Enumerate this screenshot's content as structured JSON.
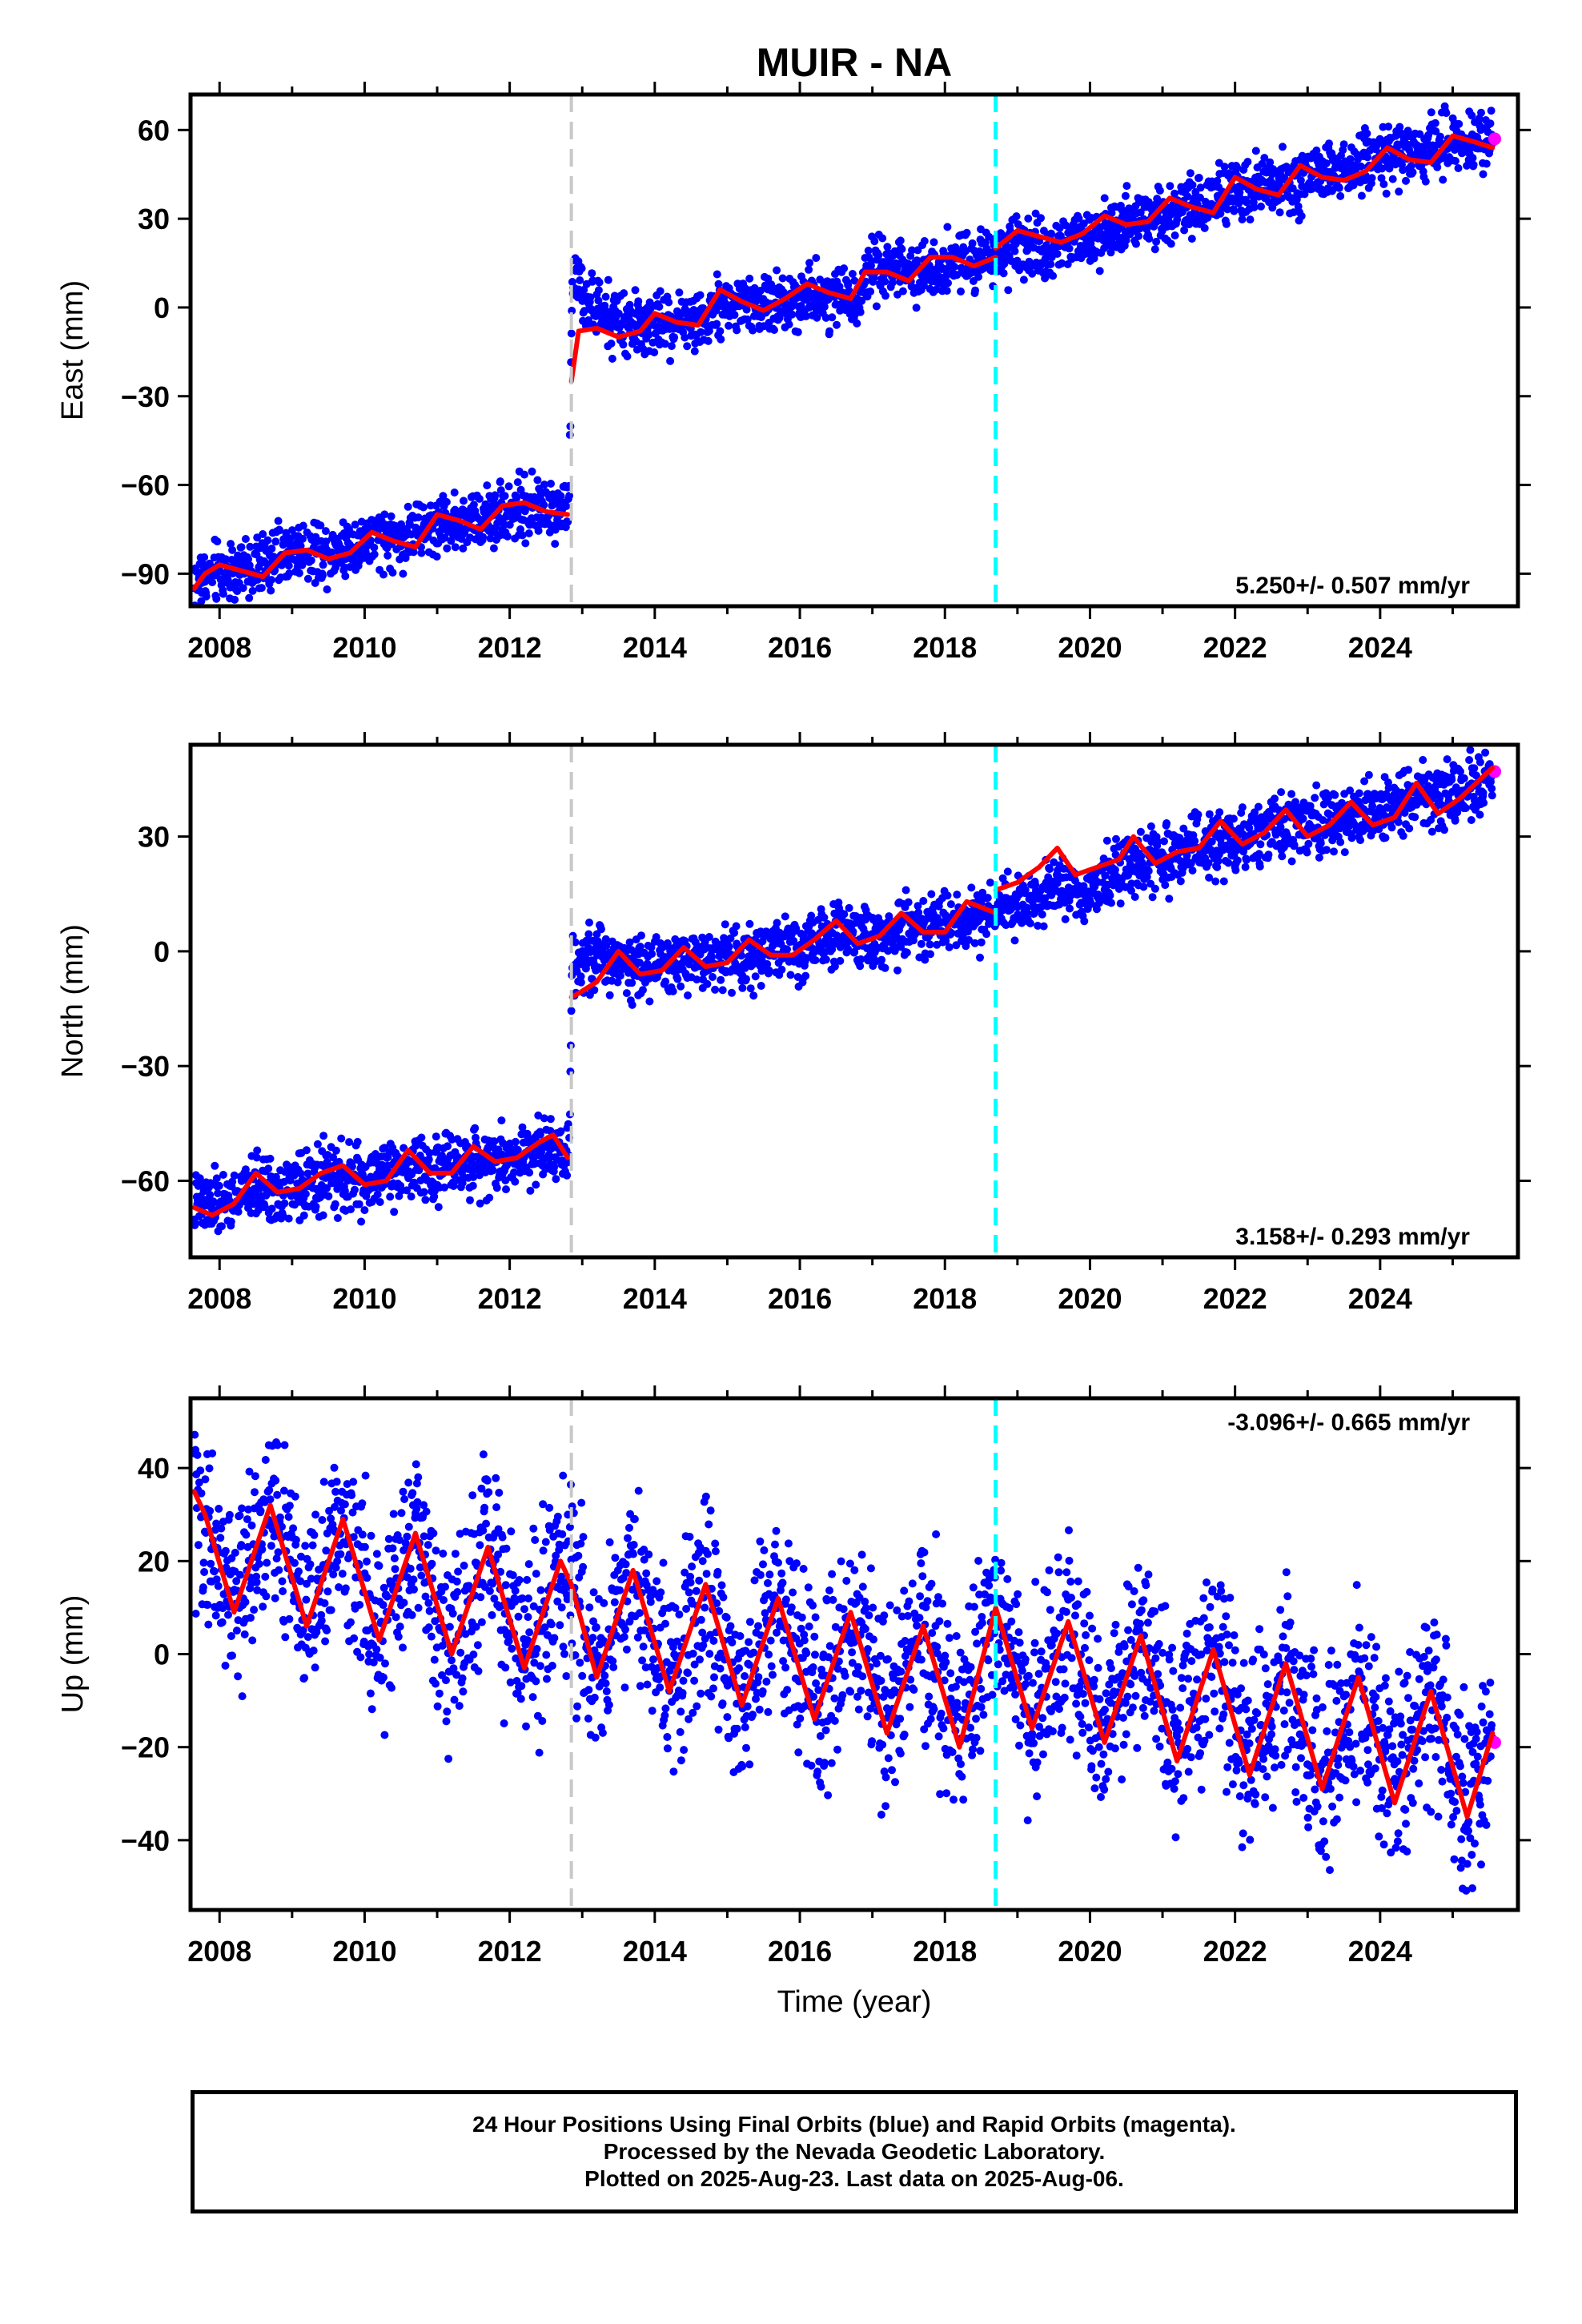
{
  "colors": {
    "final_orbits": "#0000ff",
    "rapid_orbits": "#ff00ff",
    "model": "#ff0000",
    "equipment_change": "#c8c8c8",
    "earthquake": "#00ffff",
    "frame": "#000000"
  },
  "caption": {
    "line1": "24 Hour Positions Using Final Orbits (blue) and Rapid Orbits (magenta).",
    "line2": "Processed by the Nevada Geodetic Laboratory.",
    "line3": "Plotted on 2025-Aug-23. Last data on 2025-Aug-06."
  },
  "chart_data": [
    {
      "type": "scatter",
      "title": "MUIR - NA",
      "ylabel": "East (mm)",
      "xlabel": "",
      "xlim": [
        2007.6,
        2025.9
      ],
      "ylim": [
        -101,
        72
      ],
      "yticks": [
        60,
        30,
        0,
        -30,
        -60,
        -90
      ],
      "xticks": [
        2008,
        2010,
        2012,
        2014,
        2016,
        2018,
        2020,
        2022,
        2024
      ],
      "rate_label": "5.250+/- 0.507 mm/yr",
      "rate_position": "bottom-right",
      "vertical_lines": [
        {
          "x": 2012.85,
          "kind": "equipment_change",
          "style": "dashed",
          "color": "#c8c8c8"
        },
        {
          "x": 2018.7,
          "kind": "earthquake",
          "style": "dashed",
          "color": "#00ffff"
        }
      ],
      "model": {
        "segments": [
          {
            "x": [
              2007.65,
              2007.8,
              2008.0,
              2008.3,
              2008.6,
              2008.9,
              2009.2,
              2009.5,
              2009.8,
              2010.1,
              2010.4,
              2010.7,
              2011.0,
              2011.3,
              2011.6,
              2011.9,
              2012.2,
              2012.5,
              2012.8
            ],
            "y": [
              -95,
              -90,
              -87,
              -89,
              -91,
              -83,
              -82,
              -85,
              -83,
              -76,
              -79,
              -81,
              -70,
              -72,
              -75,
              -67,
              -66,
              -69,
              -70
            ]
          },
          {
            "x": [
              2012.85,
              2012.95,
              2013.2,
              2013.5,
              2013.8,
              2014.0,
              2014.3,
              2014.6,
              2014.9,
              2015.2,
              2015.5,
              2015.8,
              2016.1,
              2016.4,
              2016.7,
              2016.9,
              2017.2,
              2017.5,
              2017.8,
              2018.1,
              2018.4,
              2018.7
            ],
            "y": [
              -25,
              -8,
              -7,
              -10,
              -8,
              -2,
              -5,
              -6,
              6,
              2,
              -1,
              3,
              8,
              5,
              3,
              12,
              12,
              9,
              17,
              17,
              14,
              17
            ]
          },
          {
            "x": [
              2018.7,
              2019.0,
              2019.3,
              2019.6,
              2019.9,
              2020.2,
              2020.5,
              2020.8,
              2021.1,
              2021.4,
              2021.7,
              2022.0,
              2022.3,
              2022.6,
              2022.9,
              2023.2,
              2023.5,
              2023.8,
              2024.1,
              2024.4,
              2024.7,
              2025.0,
              2025.3,
              2025.55
            ],
            "y": [
              20,
              26,
              24,
              22,
              25,
              31,
              28,
              29,
              37,
              34,
              32,
              44,
              40,
              38,
              48,
              44,
              43,
              46,
              54,
              50,
              49,
              58,
              56,
              54
            ]
          }
        ]
      },
      "envelope": {
        "x": [
          2007.65,
          2008.0,
          2008.5,
          2009.0,
          2009.5,
          2010.0,
          2010.5,
          2011.0,
          2011.5,
          2012.0,
          2012.5,
          2012.82,
          2012.86,
          2013.0,
          2013.5,
          2014.0,
          2014.5,
          2015.0,
          2015.5,
          2016.0,
          2016.5,
          2016.8,
          2017.0,
          2017.5,
          2018.0,
          2018.5,
          2019.0,
          2019.5,
          2020.0,
          2020.5,
          2021.0,
          2021.5,
          2022.0,
          2022.5,
          2023.0,
          2023.5,
          2024.0,
          2024.5,
          2025.0,
          2025.55
        ],
        "y": [
          -93,
          -89,
          -88,
          -82,
          -82,
          -79,
          -78,
          -73,
          -72,
          -68,
          -68,
          -67,
          12,
          2,
          -6,
          -6,
          -5,
          2,
          0,
          4,
          4,
          4,
          14,
          12,
          15,
          17,
          19,
          21,
          24,
          28,
          32,
          34,
          39,
          41,
          44,
          46,
          52,
          53,
          56,
          56
        ],
        "spread": 5
      },
      "rapid_points": [
        {
          "x": 2025.58,
          "y": 57
        }
      ]
    },
    {
      "type": "scatter",
      "ylabel": "North (mm)",
      "xlabel": "",
      "xlim": [
        2007.6,
        2025.9
      ],
      "ylim": [
        -80,
        54
      ],
      "yticks": [
        30,
        0,
        -30,
        -60
      ],
      "xticks": [
        2008,
        2010,
        2012,
        2014,
        2016,
        2018,
        2020,
        2022,
        2024
      ],
      "rate_label": "3.158+/- 0.293 mm/yr",
      "rate_position": "bottom-right",
      "vertical_lines": [
        {
          "x": 2012.85,
          "kind": "equipment_change",
          "style": "dashed",
          "color": "#c8c8c8"
        },
        {
          "x": 2018.7,
          "kind": "earthquake",
          "style": "dashed",
          "color": "#00ffff"
        }
      ],
      "model": {
        "segments": [
          {
            "x": [
              2007.65,
              2007.9,
              2008.2,
              2008.5,
              2008.8,
              2009.1,
              2009.4,
              2009.7,
              2010.0,
              2010.3,
              2010.6,
              2010.9,
              2011.2,
              2011.5,
              2011.8,
              2012.1,
              2012.4,
              2012.6,
              2012.8
            ],
            "y": [
              -67,
              -69,
              -66,
              -58,
              -63,
              -62,
              -58,
              -56,
              -61,
              -60,
              -52,
              -58,
              -58,
              -51,
              -55,
              -54,
              -50,
              -48,
              -54
            ]
          },
          {
            "x": [
              2012.85,
              2012.95,
              2013.2,
              2013.5,
              2013.8,
              2014.1,
              2014.4,
              2014.7,
              2015.0,
              2015.3,
              2015.6,
              2015.9,
              2016.2,
              2016.5,
              2016.8,
              2017.1,
              2017.4,
              2017.7,
              2018.0,
              2018.3,
              2018.7
            ],
            "y": [
              -12,
              -11,
              -8,
              0,
              -6,
              -5,
              1,
              -4,
              -3,
              3,
              -1,
              -1,
              3,
              8,
              2,
              4,
              10,
              5,
              5,
              13,
              10
            ]
          },
          {
            "x": [
              2018.7,
              2019.0,
              2019.3,
              2019.55,
              2019.8,
              2020.1,
              2020.4,
              2020.6,
              2020.9,
              2021.2,
              2021.5,
              2021.8,
              2022.1,
              2022.4,
              2022.7,
              2023.0,
              2023.3,
              2023.6,
              2023.9,
              2024.2,
              2024.5,
              2024.8,
              2025.1,
              2025.55
            ],
            "y": [
              16,
              18,
              22,
              27,
              20,
              22,
              24,
              30,
              23,
              26,
              27,
              34,
              28,
              31,
              37,
              30,
              33,
              39,
              33,
              35,
              44,
              36,
              40,
              48
            ]
          }
        ]
      },
      "envelope": {
        "x": [
          2007.65,
          2008.0,
          2008.5,
          2009.0,
          2009.5,
          2010.0,
          2010.5,
          2011.0,
          2011.5,
          2012.0,
          2012.5,
          2012.82,
          2012.86,
          2013.0,
          2013.5,
          2014.0,
          2014.5,
          2015.0,
          2015.5,
          2016.0,
          2016.5,
          2017.0,
          2017.5,
          2018.0,
          2018.5,
          2018.7,
          2019.0,
          2019.5,
          2020.0,
          2020.5,
          2021.0,
          2021.5,
          2022.0,
          2022.5,
          2023.0,
          2023.5,
          2024.0,
          2024.5,
          2025.0,
          2025.55
        ],
        "y": [
          -67,
          -66,
          -62,
          -62,
          -59,
          -60,
          -56,
          -57,
          -55,
          -54,
          -51,
          -52,
          -3,
          -2,
          -2,
          -4,
          -2,
          -2,
          0,
          0,
          4,
          3,
          6,
          6,
          10,
          11,
          12,
          15,
          16,
          22,
          24,
          27,
          28,
          32,
          33,
          34,
          37,
          41,
          41,
          45
        ],
        "spread": 4
      },
      "rapid_points": [
        {
          "x": 2025.58,
          "y": 47
        }
      ]
    },
    {
      "type": "scatter",
      "ylabel": "Up (mm)",
      "xlabel": "Time (year)",
      "xlim": [
        2007.6,
        2025.9
      ],
      "ylim": [
        -55,
        55
      ],
      "yticks": [
        40,
        20,
        0,
        -20,
        -40
      ],
      "xticks": [
        2008,
        2010,
        2012,
        2014,
        2016,
        2018,
        2020,
        2022,
        2024
      ],
      "rate_label": "-3.096+/- 0.665 mm/yr",
      "rate_position": "top-right",
      "vertical_lines": [
        {
          "x": 2012.85,
          "kind": "equipment_change",
          "style": "dashed",
          "color": "#c8c8c8"
        },
        {
          "x": 2018.7,
          "kind": "earthquake",
          "style": "dashed",
          "color": "#00ffff"
        }
      ],
      "model": {
        "segments": [
          {
            "x": [
              2007.65,
              2007.8,
              2008.2,
              2008.7,
              2009.2,
              2009.7,
              2010.2,
              2010.7,
              2011.2,
              2011.7,
              2012.2,
              2012.7,
              2012.85
            ],
            "y": [
              35,
              30,
              9,
              32,
              6,
              29,
              3,
              26,
              0,
              23,
              -3,
              20,
              15
            ]
          },
          {
            "x": [
              2012.85,
              2013.2,
              2013.7,
              2014.2,
              2014.7,
              2015.2,
              2015.7,
              2016.2,
              2016.7,
              2017.2,
              2017.7,
              2018.2,
              2018.7
            ],
            "y": [
              15,
              -5,
              18,
              -8,
              15,
              -11,
              12,
              -14,
              9,
              -17,
              6,
              -20,
              10
            ]
          },
          {
            "x": [
              2018.7,
              2019.2,
              2019.7,
              2020.2,
              2020.7,
              2021.2,
              2021.7,
              2022.2,
              2022.7,
              2023.2,
              2023.7,
              2024.2,
              2024.7,
              2025.2,
              2025.55
            ],
            "y": [
              10,
              -16,
              7,
              -19,
              4,
              -23,
              1,
              -26,
              -2,
              -29,
              -5,
              -32,
              -8,
              -35,
              -17
            ]
          }
        ]
      },
      "envelope": {
        "x": [
          2007.65,
          2008.2,
          2008.7,
          2009.2,
          2009.7,
          2010.2,
          2010.7,
          2011.2,
          2011.7,
          2012.2,
          2012.7,
          2013.2,
          2013.7,
          2014.2,
          2014.7,
          2015.2,
          2015.7,
          2016.2,
          2016.7,
          2017.2,
          2017.7,
          2018.2,
          2018.7,
          2019.2,
          2019.7,
          2020.2,
          2020.7,
          2021.2,
          2021.7,
          2022.2,
          2022.7,
          2023.2,
          2023.7,
          2024.2,
          2024.7,
          2025.2,
          2025.55
        ],
        "y": [
          35,
          10,
          32,
          7,
          29,
          4,
          26,
          1,
          23,
          -2,
          20,
          -4,
          18,
          -7,
          15,
          -10,
          12,
          -13,
          9,
          -16,
          6,
          -19,
          10,
          -15,
          7,
          -18,
          4,
          -21,
          1,
          -24,
          -2,
          -27,
          -5,
          -30,
          -8,
          -33,
          -18
        ],
        "spread": 10
      },
      "rapid_points": [
        {
          "x": 2025.58,
          "y": -19
        }
      ]
    }
  ]
}
